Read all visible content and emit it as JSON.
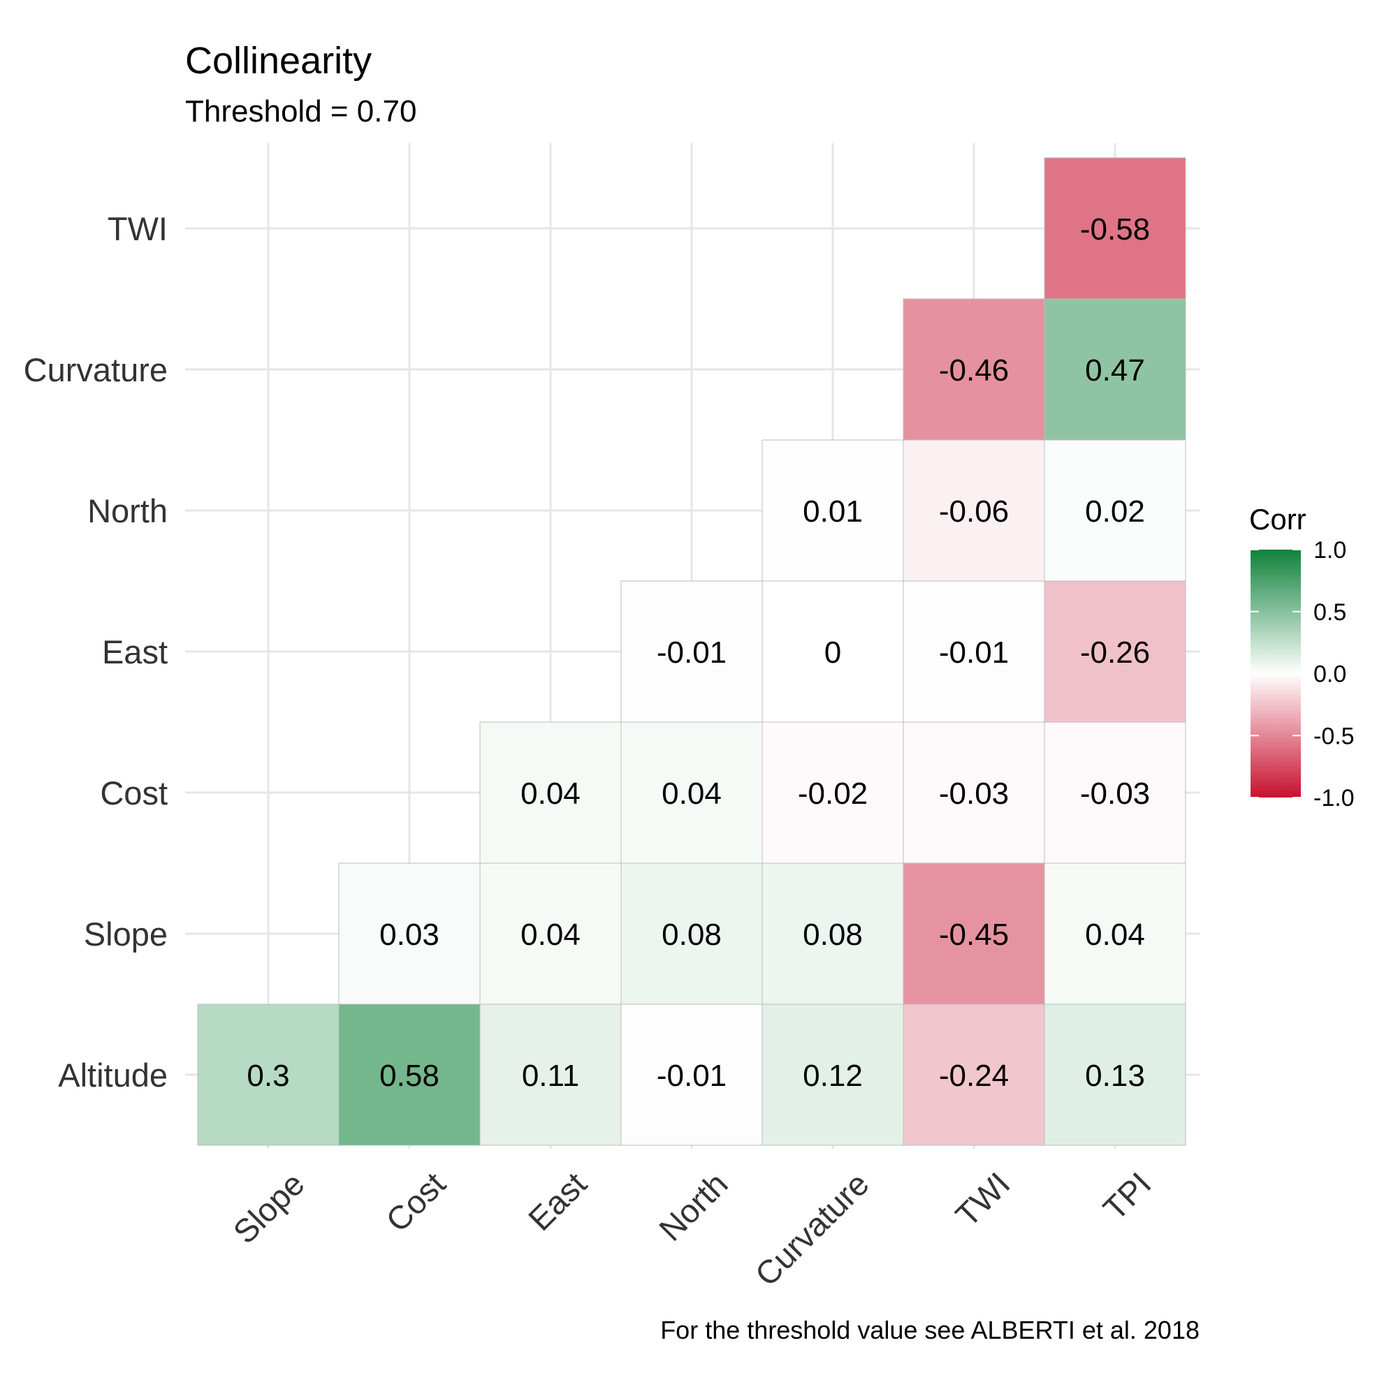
{
  "chart_data": {
    "type": "heatmap",
    "title": "Collinearity",
    "subtitle": "Threshold = 0.70",
    "caption": "For the threshold value see ALBERTI et al. 2018",
    "x_categories": [
      "Slope",
      "Cost",
      "East",
      "North",
      "Curvature",
      "TWI",
      "TPI"
    ],
    "y_categories": [
      "Altitude",
      "Slope",
      "Cost",
      "East",
      "North",
      "Curvature",
      "TWI"
    ],
    "cells": [
      {
        "x": "Slope",
        "y": "Altitude",
        "value": 0.3,
        "label": "0.3"
      },
      {
        "x": "Cost",
        "y": "Altitude",
        "value": 0.58,
        "label": "0.58"
      },
      {
        "x": "East",
        "y": "Altitude",
        "value": 0.11,
        "label": "0.11"
      },
      {
        "x": "North",
        "y": "Altitude",
        "value": -0.01,
        "label": "-0.01"
      },
      {
        "x": "Curvature",
        "y": "Altitude",
        "value": 0.12,
        "label": "0.12"
      },
      {
        "x": "TWI",
        "y": "Altitude",
        "value": -0.24,
        "label": "-0.24"
      },
      {
        "x": "TPI",
        "y": "Altitude",
        "value": 0.13,
        "label": "0.13"
      },
      {
        "x": "Cost",
        "y": "Slope",
        "value": 0.03,
        "label": "0.03"
      },
      {
        "x": "East",
        "y": "Slope",
        "value": 0.04,
        "label": "0.04"
      },
      {
        "x": "North",
        "y": "Slope",
        "value": 0.08,
        "label": "0.08"
      },
      {
        "x": "Curvature",
        "y": "Slope",
        "value": 0.08,
        "label": "0.08"
      },
      {
        "x": "TWI",
        "y": "Slope",
        "value": -0.45,
        "label": "-0.45"
      },
      {
        "x": "TPI",
        "y": "Slope",
        "value": 0.04,
        "label": "0.04"
      },
      {
        "x": "East",
        "y": "Cost",
        "value": 0.04,
        "label": "0.04"
      },
      {
        "x": "North",
        "y": "Cost",
        "value": 0.04,
        "label": "0.04"
      },
      {
        "x": "Curvature",
        "y": "Cost",
        "value": -0.02,
        "label": "-0.02"
      },
      {
        "x": "TWI",
        "y": "Cost",
        "value": -0.03,
        "label": "-0.03"
      },
      {
        "x": "TPI",
        "y": "Cost",
        "value": -0.03,
        "label": "-0.03"
      },
      {
        "x": "North",
        "y": "East",
        "value": -0.01,
        "label": "-0.01"
      },
      {
        "x": "Curvature",
        "y": "East",
        "value": 0,
        "label": "0"
      },
      {
        "x": "TWI",
        "y": "East",
        "value": -0.01,
        "label": "-0.01"
      },
      {
        "x": "TPI",
        "y": "East",
        "value": -0.26,
        "label": "-0.26"
      },
      {
        "x": "Curvature",
        "y": "North",
        "value": 0.01,
        "label": "0.01"
      },
      {
        "x": "TWI",
        "y": "North",
        "value": -0.06,
        "label": "-0.06"
      },
      {
        "x": "TPI",
        "y": "North",
        "value": 0.02,
        "label": "0.02"
      },
      {
        "x": "TWI",
        "y": "Curvature",
        "value": -0.46,
        "label": "-0.46"
      },
      {
        "x": "TPI",
        "y": "Curvature",
        "value": 0.47,
        "label": "0.47"
      },
      {
        "x": "TPI",
        "y": "TWI",
        "value": -0.58,
        "label": "-0.58"
      }
    ],
    "legend": {
      "title": "Corr",
      "ticks": [
        "1.0",
        "0.5",
        "0.0",
        "-0.5",
        "-1.0"
      ],
      "range": [
        -1,
        1
      ],
      "position": "right"
    },
    "colors": {
      "negative": "#c8102e",
      "zero": "#ffffff",
      "positive": "#10823a"
    },
    "grid": true
  }
}
